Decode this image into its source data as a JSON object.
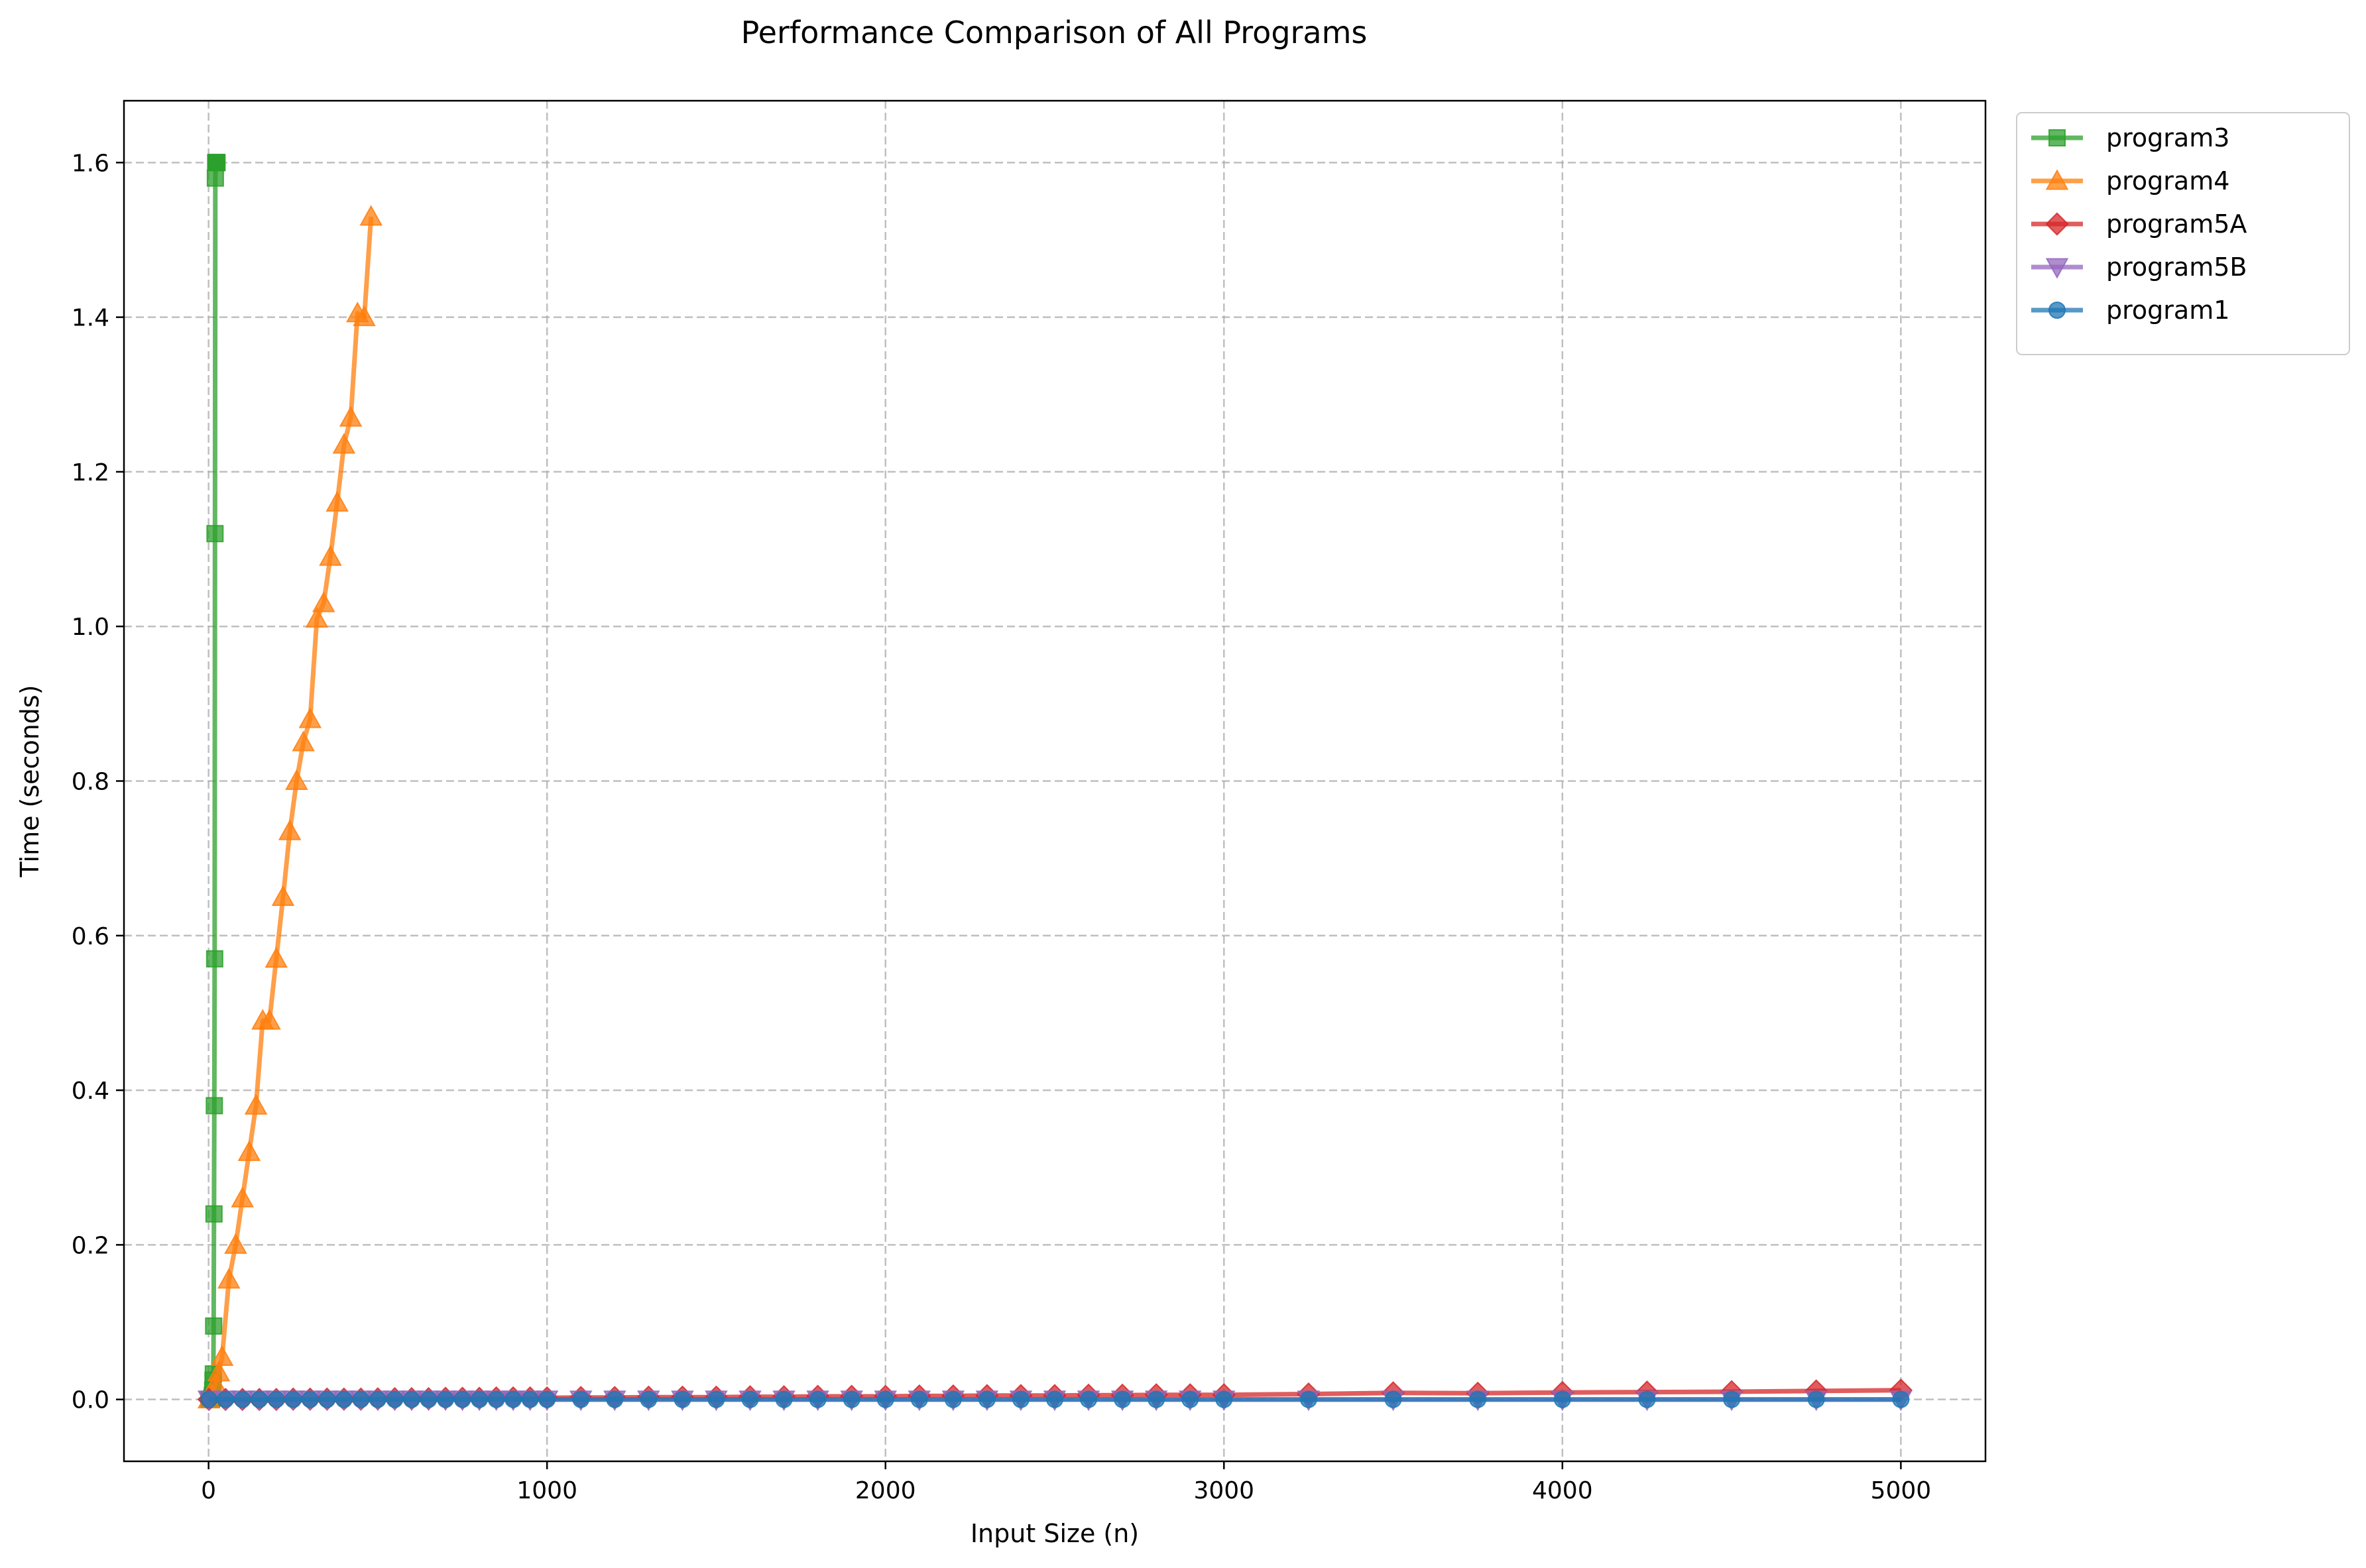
{
  "chart_data": {
    "type": "line",
    "title": "Performance Comparison of All Programs",
    "xlabel": "Input Size (n)",
    "ylabel": "Time (seconds)",
    "xlim": [
      -250,
      5250
    ],
    "ylim": [
      -0.08,
      1.68
    ],
    "x_ticks": [
      0,
      1000,
      2000,
      3000,
      4000,
      5000
    ],
    "x_tick_labels": [
      "0",
      "1000",
      "2000",
      "3000",
      "4000",
      "5000"
    ],
    "y_ticks": [
      0.0,
      0.2,
      0.4,
      0.6,
      0.8,
      1.0,
      1.2,
      1.4,
      1.6
    ],
    "y_tick_labels": [
      "0.0",
      "0.2",
      "0.4",
      "0.6",
      "0.8",
      "1.0",
      "1.2",
      "1.4",
      "1.6"
    ],
    "grid": true,
    "legend_position": "outside-top-right",
    "series": [
      {
        "name": "program3",
        "color": "#2ca02c",
        "marker": "square",
        "x": [
          1,
          2,
          3,
          4,
          5,
          6,
          7,
          8,
          9,
          10,
          11,
          12,
          13,
          14,
          15,
          16,
          17,
          18,
          19,
          20,
          21,
          22,
          23,
          24,
          25
        ],
        "y": [
          0.0,
          0.0,
          0.0,
          0.0,
          0.0,
          0.0,
          0.0,
          0.0,
          0.001,
          0.002,
          0.005,
          0.012,
          0.025,
          0.033,
          0.095,
          0.24,
          0.38,
          0.57,
          1.12,
          1.58,
          1.6,
          1.6,
          1.6,
          1.6,
          1.6
        ]
      },
      {
        "name": "program4",
        "color": "#ff7f0e",
        "marker": "triangle-up",
        "x": [
          1,
          10,
          20,
          30,
          40,
          60,
          80,
          100,
          120,
          140,
          160,
          180,
          200,
          220,
          240,
          260,
          280,
          300,
          320,
          340,
          360,
          380,
          400,
          420,
          440,
          460,
          480
        ],
        "y": [
          0.0,
          0.006,
          0.02,
          0.035,
          0.055,
          0.155,
          0.2,
          0.26,
          0.32,
          0.38,
          0.49,
          0.49,
          0.57,
          0.65,
          0.735,
          0.8,
          0.85,
          0.88,
          1.01,
          1.03,
          1.09,
          1.16,
          1.235,
          1.27,
          1.405,
          1.4,
          1.53
        ]
      },
      {
        "name": "program5A",
        "color": "#d62728",
        "marker": "diamond",
        "x": [
          1,
          50,
          100,
          150,
          200,
          250,
          300,
          350,
          400,
          450,
          500,
          550,
          600,
          650,
          700,
          750,
          800,
          850,
          900,
          950,
          1000,
          1100,
          1200,
          1300,
          1400,
          1500,
          1600,
          1700,
          1800,
          1900,
          2000,
          2100,
          2200,
          2300,
          2400,
          2500,
          2600,
          2700,
          2800,
          2900,
          3000,
          3250,
          3500,
          3750,
          4000,
          4250,
          4500,
          4750,
          5000
        ],
        "y": [
          0.0,
          0.0,
          0.0,
          0.0,
          0.0,
          0.0005,
          0.0005,
          0.0005,
          0.0005,
          0.0005,
          0.0008,
          0.001,
          0.001,
          0.001,
          0.0015,
          0.0015,
          0.0015,
          0.002,
          0.002,
          0.002,
          0.002,
          0.0025,
          0.0025,
          0.003,
          0.003,
          0.003,
          0.0035,
          0.0035,
          0.004,
          0.004,
          0.004,
          0.0045,
          0.0045,
          0.005,
          0.005,
          0.005,
          0.0055,
          0.0055,
          0.006,
          0.006,
          0.006,
          0.007,
          0.0085,
          0.008,
          0.009,
          0.0095,
          0.01,
          0.011,
          0.012
        ]
      },
      {
        "name": "program5B",
        "color": "#9467bd",
        "marker": "triangle-down",
        "x": [
          1,
          50,
          100,
          150,
          200,
          250,
          300,
          350,
          400,
          450,
          500,
          550,
          600,
          650,
          700,
          750,
          800,
          850,
          900,
          950,
          1000,
          1100,
          1200,
          1300,
          1400,
          1500,
          1600,
          1700,
          1800,
          1900,
          2000,
          2100,
          2200,
          2300,
          2400,
          2500,
          2600,
          2700,
          2800,
          2900,
          3000,
          3250,
          3500,
          3750,
          4000,
          4250,
          4500,
          4750,
          5000
        ],
        "y": [
          0.0,
          0.0,
          0.0,
          0.0,
          0.0,
          0.0,
          0.0,
          0.0,
          0.0,
          0.0,
          0.0,
          0.0,
          0.0,
          0.0,
          0.0,
          0.0,
          0.0,
          0.0,
          0.0,
          0.0,
          0.0,
          0.0,
          0.0,
          0.0,
          0.0,
          0.0,
          0.0,
          0.0,
          0.0,
          0.0,
          0.0,
          0.0,
          0.0,
          0.0,
          0.0,
          0.0,
          0.0,
          0.0,
          0.0,
          0.0,
          0.0,
          0.0,
          0.0,
          0.0,
          0.0,
          0.0,
          0.0,
          0.0,
          0.0
        ]
      },
      {
        "name": "program1",
        "color": "#1f77b4",
        "marker": "circle",
        "x": [
          1,
          50,
          100,
          150,
          200,
          250,
          300,
          350,
          400,
          450,
          500,
          550,
          600,
          650,
          700,
          750,
          800,
          850,
          900,
          950,
          1000,
          1100,
          1200,
          1300,
          1400,
          1500,
          1600,
          1700,
          1800,
          1900,
          2000,
          2100,
          2200,
          2300,
          2400,
          2500,
          2600,
          2700,
          2800,
          2900,
          3000,
          3250,
          3500,
          3750,
          4000,
          4250,
          4500,
          4750,
          5000
        ],
        "y": [
          0.0,
          0.0,
          0.0,
          0.0,
          0.0,
          0.0,
          0.0,
          0.0,
          0.0,
          0.0,
          0.0,
          0.0,
          0.0,
          0.0,
          0.0,
          0.0,
          0.0,
          0.0,
          0.0,
          0.0,
          0.0,
          0.0,
          0.0,
          0.0,
          0.0,
          0.0,
          0.0,
          0.0,
          0.0,
          0.0,
          0.0,
          0.0,
          0.0,
          0.0,
          0.0,
          0.0,
          0.0,
          0.0,
          0.0,
          0.0,
          0.0,
          0.0,
          0.0,
          0.0,
          0.0,
          0.0,
          0.0,
          0.0,
          0.0
        ]
      }
    ]
  }
}
